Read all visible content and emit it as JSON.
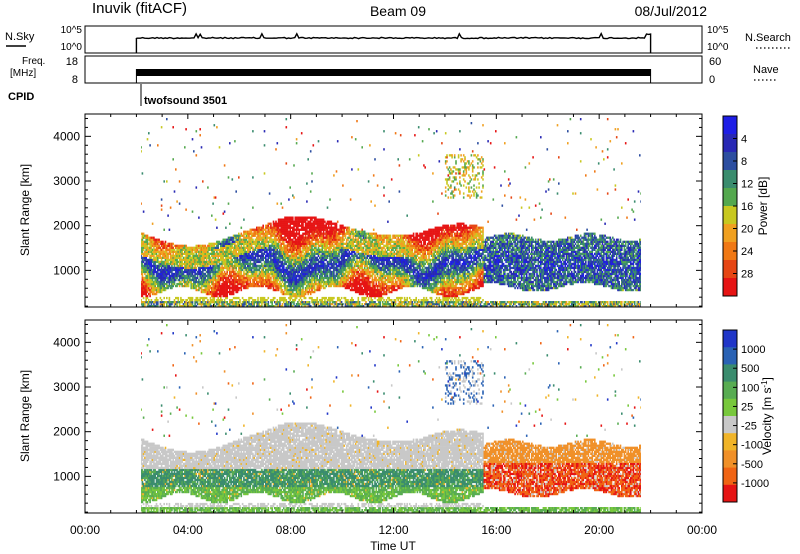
{
  "header": {
    "station": "Inuvik (fitACF)",
    "beam": "Beam 09",
    "date": "08/Jul/2012"
  },
  "top_panels": {
    "nsky_label": "N.Sky",
    "nsky_ticks": [
      "10^5",
      "10^0"
    ],
    "nsearch_label": "N.Search",
    "nsearch_ticks": [
      "10^5",
      "10^0"
    ],
    "freq_label": "Freq.",
    "freq_unit": "[MHz]",
    "freq_ticks": [
      "18",
      "8"
    ],
    "nave_label": "Nave",
    "nave_ticks": [
      "60",
      "0"
    ],
    "cpid_label": "CPID",
    "cpid_value": "twofsound 3501"
  },
  "chart_data": [
    {
      "type": "heatmap",
      "name": "power",
      "ylabel": "Slant Range [km]",
      "yticks": [
        1000,
        2000,
        3000,
        4000
      ],
      "ylim": [
        180,
        4500
      ],
      "x_ticks": [
        "00:00",
        "04:00",
        "08:00",
        "12:00",
        "16:00",
        "20:00",
        "00:00"
      ],
      "xlim_hours": [
        0,
        24
      ],
      "data_window_hours": [
        2.0,
        22.0
      ],
      "colorbar": {
        "label": "Power [dB]",
        "ticks": [
          "4",
          "8",
          "12",
          "16",
          "20",
          "24",
          "28"
        ],
        "colors": [
          "#1e1ee6",
          "#2828b4",
          "#2c4ea0",
          "#3a8c6e",
          "#54a84e",
          "#c8c820",
          "#f0a020",
          "#f07814",
          "#e64614",
          "#e61414"
        ]
      },
      "features": [
        {
          "time_hours": [
            2.0,
            15.5
          ],
          "range_km": [
            500,
            1800
          ],
          "level": "power 12-28 dB, strongest 700-1200 km"
        },
        {
          "time_hours": [
            6.0,
            13.0
          ],
          "range_km": [
            1500,
            2400
          ],
          "level": "power 4-12 dB"
        },
        {
          "time_hours": [
            15.5,
            22.0
          ],
          "range_km": [
            600,
            1800
          ],
          "level": "power 16-28 dB"
        }
      ]
    },
    {
      "type": "heatmap",
      "name": "velocity",
      "ylabel": "Slant Range [km]",
      "yticks": [
        1000,
        2000,
        3000,
        4000
      ],
      "ylim": [
        180,
        4500
      ],
      "x_ticks": [
        "00:00",
        "04:00",
        "08:00",
        "12:00",
        "16:00",
        "20:00",
        "00:00"
      ],
      "xlabel": "Time UT",
      "xlim_hours": [
        0,
        24
      ],
      "data_window_hours": [
        2.0,
        22.0
      ],
      "colorbar": {
        "label": "Velocity [m s^-1]",
        "ticks": [
          "1000",
          "500",
          "100",
          "25",
          "-25",
          "-100",
          "-500",
          "-1000"
        ],
        "colors": [
          "#2036c8",
          "#2a62b4",
          "#3a8c6e",
          "#58ac52",
          "#78c83c",
          "#c8c8c8",
          "#f0b428",
          "#f09028",
          "#f06414",
          "#e61414"
        ]
      },
      "features": [
        {
          "time_hours": [
            2.0,
            15.5
          ],
          "range_km": [
            1100,
            2300
          ],
          "level": "ground scatter, -25 to 25 m/s (grey)"
        },
        {
          "time_hours": [
            2.0,
            15.5
          ],
          "range_km": [
            500,
            1200
          ],
          "level": "100 to 500 m/s (green)"
        },
        {
          "time_hours": [
            15.5,
            22.0
          ],
          "range_km": [
            600,
            1800
          ],
          "level": "-100 to -500 m/s (orange/red)"
        }
      ]
    }
  ]
}
